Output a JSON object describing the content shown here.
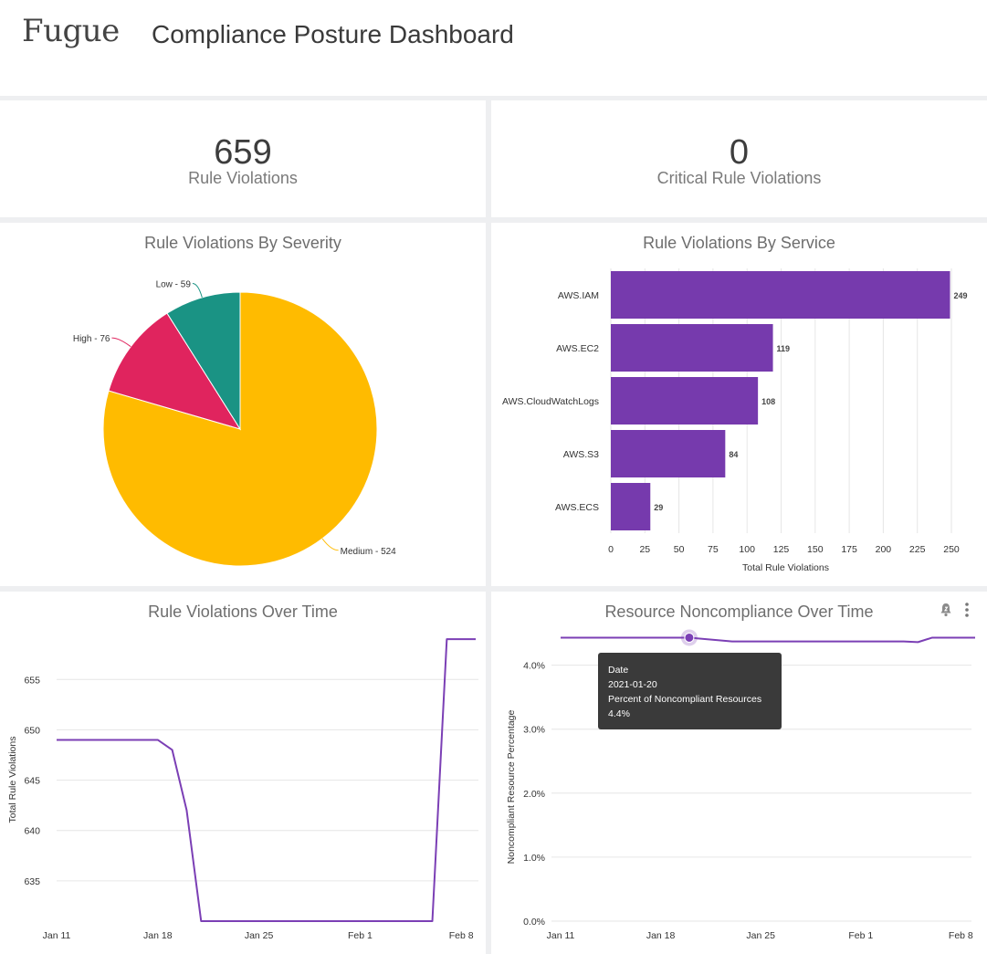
{
  "header": {
    "logo": "Fugue",
    "title": "Compliance Posture Dashboard"
  },
  "kpis": [
    {
      "value": "659",
      "label": "Rule Violations"
    },
    {
      "value": "0",
      "label": "Critical Rule Violations"
    }
  ],
  "colors": {
    "medium": "#ffbb00",
    "high": "#e0245e",
    "low": "#1a9384",
    "bar": "#763aad",
    "line": "#7b3fb5",
    "tooltip": "#3a3a3a"
  },
  "chart_data": [
    {
      "type": "pie",
      "title": "Rule Violations By Severity",
      "labels": [
        "Medium",
        "High",
        "Low"
      ],
      "values": [
        524,
        76,
        59
      ],
      "data_labels": [
        "Medium - 524",
        "High - 76",
        "Low - 59"
      ]
    },
    {
      "type": "bar",
      "orientation": "horizontal",
      "title": "Rule Violations By Service",
      "categories": [
        "AWS.IAM",
        "AWS.EC2",
        "AWS.CloudWatchLogs",
        "AWS.S3",
        "AWS.ECS"
      ],
      "values": [
        249,
        119,
        108,
        84,
        29
      ],
      "xlabel": "Total Rule Violations",
      "xlim": [
        0,
        250
      ],
      "xticks": [
        "0",
        "25",
        "50",
        "75",
        "100",
        "125",
        "150",
        "175",
        "200",
        "225",
        "250"
      ]
    },
    {
      "type": "line",
      "title": "Rule Violations Over Time",
      "ylabel": "Total Rule Violations",
      "x": [
        0,
        7,
        8,
        9,
        10,
        26,
        27,
        29
      ],
      "values": [
        649,
        649,
        648,
        642,
        631,
        631,
        659,
        659
      ],
      "x_domain": [
        0,
        29
      ],
      "ylim": [
        631,
        659
      ],
      "yticks": [
        655,
        650,
        645,
        640,
        635
      ],
      "ytick_labels": [
        "655",
        "650",
        "645",
        "640",
        "635"
      ],
      "xticks": [
        0,
        7,
        14,
        21,
        28
      ],
      "xtick_labels": [
        "Jan 11",
        "Jan 18",
        "Jan 25",
        "Feb 1",
        "Feb 8"
      ]
    },
    {
      "type": "line",
      "title": "Resource Noncompliance Over Time",
      "ylabel": "Noncompliant Resource Percentage",
      "x": [
        0,
        9,
        12,
        21,
        24,
        25,
        26,
        29
      ],
      "values": [
        4.43,
        4.43,
        4.37,
        4.37,
        4.37,
        4.36,
        4.43,
        4.43
      ],
      "x_domain": [
        0,
        29
      ],
      "ylim": [
        0,
        4.4
      ],
      "yticks": [
        4,
        3,
        2,
        1,
        0
      ],
      "ytick_labels": [
        "4.0%",
        "3.0%",
        "2.0%",
        "1.0%",
        "0.0%"
      ],
      "xticks": [
        0,
        7,
        14,
        21,
        28
      ],
      "xtick_labels": [
        "Jan 11",
        "Jan 18",
        "Jan 25",
        "Feb 1",
        "Feb 8"
      ],
      "highlight_index": 1,
      "tooltip": {
        "date_label": "Date",
        "date_value": "2021-01-20",
        "metric_label": "Percent of Noncompliant Resources",
        "metric_value": "4.4%"
      }
    }
  ]
}
